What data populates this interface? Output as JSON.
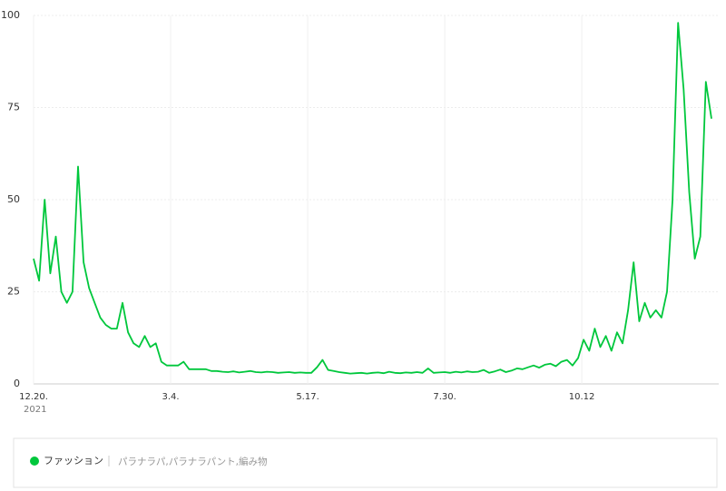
{
  "chart_data": {
    "type": "line",
    "x": [
      0,
      3,
      6,
      9,
      12,
      15,
      18,
      21,
      24,
      27,
      30,
      33,
      36,
      39,
      42,
      45,
      48,
      51,
      54,
      57,
      60,
      63,
      66,
      69,
      72,
      75,
      78,
      81,
      84,
      87,
      90,
      93,
      96,
      99,
      102,
      105,
      108,
      111,
      114,
      117,
      120,
      123,
      126,
      129,
      132,
      135,
      138,
      141,
      144,
      147,
      150,
      153,
      156,
      159,
      162,
      165,
      168,
      171,
      174,
      177,
      180,
      183,
      186,
      189,
      192,
      195,
      198,
      201,
      204,
      207,
      210,
      213,
      216,
      219,
      222,
      225,
      228,
      231,
      234,
      237,
      240,
      243,
      246,
      249,
      252,
      255,
      258,
      261,
      264,
      267,
      270,
      273,
      276,
      279,
      282,
      285,
      288,
      291,
      294,
      297,
      300,
      303,
      306,
      309,
      312,
      315,
      318,
      321,
      324,
      327,
      330,
      333,
      336,
      339,
      342,
      345,
      348,
      351,
      354,
      357,
      360,
      363,
      366
    ],
    "series": [
      {
        "name": "ファッション",
        "color": "#00c73c",
        "values": [
          34,
          28,
          50,
          30,
          40,
          25,
          22,
          25,
          59,
          33,
          26,
          22,
          18,
          16,
          15,
          15,
          22,
          14,
          11,
          10,
          13,
          10,
          11,
          6,
          5,
          5,
          5,
          6,
          4,
          4,
          4,
          4,
          3.5,
          3.5,
          3.3,
          3.2,
          3.4,
          3.1,
          3.3,
          3.5,
          3.2,
          3.1,
          3.3,
          3.2,
          3,
          3.1,
          3.2,
          3,
          3.1,
          3,
          3,
          4.5,
          6.5,
          3.8,
          3.5,
          3.2,
          3,
          2.8,
          2.9,
          3,
          2.8,
          3,
          3.1,
          2.9,
          3.3,
          3,
          2.9,
          3.1,
          3,
          3.2,
          3,
          4.2,
          3,
          3.1,
          3.2,
          3,
          3.3,
          3.1,
          3.4,
          3.2,
          3.3,
          3.8,
          3,
          3.4,
          3.9,
          3.2,
          3.6,
          4.2,
          4,
          4.5,
          5,
          4.4,
          5.2,
          5.5,
          4.8,
          6,
          6.5,
          5,
          7,
          12,
          9,
          15,
          10,
          13,
          9,
          14,
          11,
          20,
          33,
          17,
          22,
          18,
          20,
          18,
          25,
          50,
          98,
          80,
          52,
          34,
          40,
          82,
          72
        ]
      }
    ],
    "keywords": "パラナラパ,パラナラパント,編み物",
    "year_label": "2021",
    "xlim": [
      0,
      367
    ],
    "xticks": [
      {
        "value": 0,
        "label": "12.20."
      },
      {
        "value": 74,
        "label": "3.4."
      },
      {
        "value": 148,
        "label": "5.17."
      },
      {
        "value": 222,
        "label": "7.30."
      },
      {
        "value": 296,
        "label": "10.12"
      }
    ],
    "ylim": [
      0,
      100
    ],
    "yticks": [
      0,
      25,
      50,
      75,
      100
    ],
    "grid": true
  }
}
